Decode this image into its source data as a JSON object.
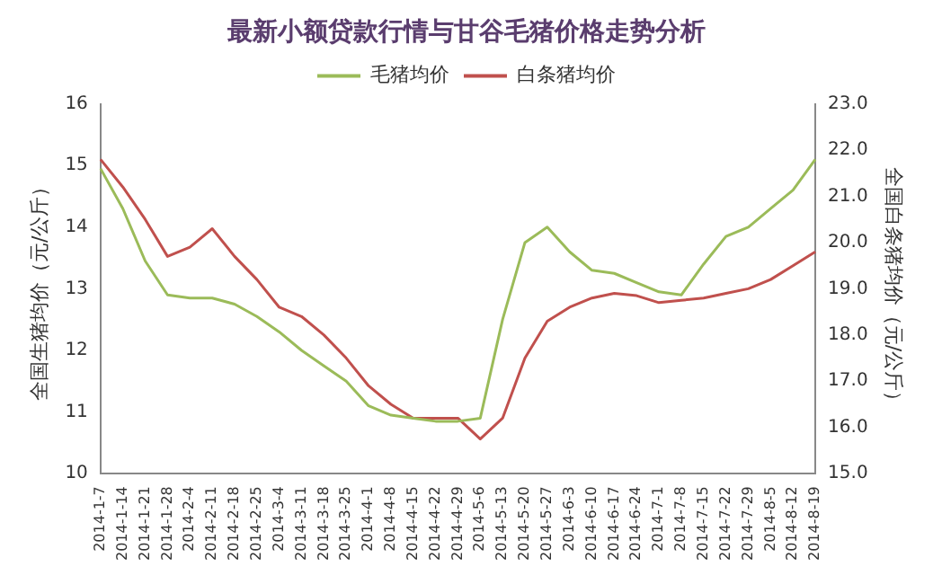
{
  "chart_data": {
    "type": "line",
    "title": "最新小额贷款行情与甘谷毛猪价格走势分析",
    "ylabel": "全国生猪均价（元/公斤）",
    "y2label": "全国白条猪均价（元/公斤）",
    "categories": [
      "2014-1-7",
      "2014-1-14",
      "2014-1-21",
      "2014-1-28",
      "2014-2-4",
      "2014-2-11",
      "2014-2-18",
      "2014-2-25",
      "2014-3-4",
      "2014-3-11",
      "2014-3-18",
      "2014-3-25",
      "2014-4-1",
      "2014-4-8",
      "2014-4-15",
      "2014-4-22",
      "2014-4-29",
      "2014-5-6",
      "2014-5-13",
      "2014-5-20",
      "2014-5-27",
      "2014-6-3",
      "2014-6-10",
      "2014-6-17",
      "2014-6-24",
      "2014-7-1",
      "2014-7-8",
      "2014-7-15",
      "2014-7-22",
      "2014-7-29",
      "2014-8-5",
      "2014-8-12",
      "2014-8-19"
    ],
    "series": [
      {
        "name": "毛猪均价",
        "color": "#9bbb59",
        "values": [
          14.95,
          14.3,
          13.45,
          12.9,
          12.85,
          12.85,
          12.75,
          12.55,
          12.3,
          12.0,
          11.75,
          11.5,
          11.1,
          10.95,
          10.9,
          10.85,
          10.85,
          10.9,
          12.5,
          13.75,
          14.0,
          13.6,
          13.3,
          13.25,
          13.1,
          12.95,
          12.9,
          13.4,
          13.85,
          14.0,
          14.3,
          14.6,
          15.1
        ]
      },
      {
        "name": "白条猪均价",
        "color": "#c0504d",
        "axis": "y2",
        "values": [
          21.8,
          21.2,
          20.5,
          19.7,
          19.9,
          20.3,
          19.7,
          19.2,
          18.6,
          18.4,
          18.0,
          17.5,
          16.9,
          16.5,
          16.2,
          16.2,
          16.2,
          15.75,
          16.2,
          17.5,
          18.3,
          18.6,
          18.8,
          18.9,
          18.85,
          18.7,
          18.75,
          18.8,
          18.9,
          19.0,
          19.2,
          19.5,
          19.8
        ]
      }
    ],
    "ylim": [
      10,
      16
    ],
    "yticks": [
      10,
      11,
      12,
      13,
      14,
      15,
      16
    ],
    "y2lim": [
      15,
      23
    ],
    "y2ticks": [
      {
        "value": 15,
        "label": "15.0"
      },
      {
        "value": 16,
        "label": "16.0"
      },
      {
        "value": 17,
        "label": "17.0"
      },
      {
        "value": 18,
        "label": "18.0"
      },
      {
        "value": 19,
        "label": "19.0"
      },
      {
        "value": 20,
        "label": "20.0"
      },
      {
        "value": 21,
        "label": "21.0"
      },
      {
        "value": 22,
        "label": "22.0"
      },
      {
        "value": 23,
        "label": "23.0"
      }
    ],
    "grid": false,
    "legend": "top",
    "marker": "none",
    "line_style": "solid"
  }
}
